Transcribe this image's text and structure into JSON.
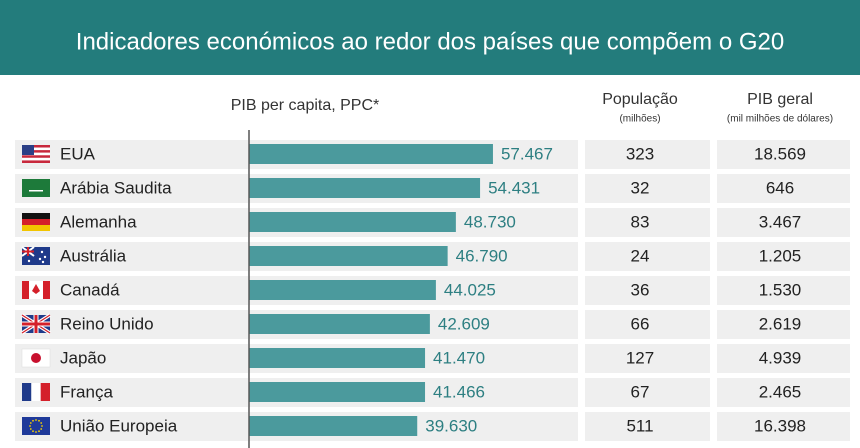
{
  "chart_data": {
    "type": "bar",
    "orientation": "horizontal",
    "title": "Indicadores económicos ao redor dos países que compõem o G20",
    "categories": [
      "EUA",
      "Arábia Saudita",
      "Alemanha",
      "Austrália",
      "Canadá",
      "Reino Unido",
      "Japão",
      "França",
      "União Europeia"
    ],
    "series": [
      {
        "name": "PIB per capita, PPC*",
        "color": "#4b9a9d",
        "values": [
          57467,
          54431,
          48730,
          46790,
          44025,
          42609,
          41470,
          41466,
          39630
        ],
        "value_labels": [
          "57.467",
          "54.431",
          "48.730",
          "46.790",
          "44.025",
          "42.609",
          "41.470",
          "41.466",
          "39.630"
        ]
      }
    ],
    "xlim": [
      0,
      77500
    ]
  },
  "table": {
    "columns": [
      {
        "title": "População",
        "subtitle": "(milhões)",
        "values": [
          323,
          32,
          83,
          24,
          36,
          66,
          127,
          67,
          511
        ]
      },
      {
        "title": "PIB geral",
        "subtitle": "(mil milhões de dólares)",
        "values": [
          "18.569",
          "646",
          "3.467",
          "1.205",
          "1.530",
          "2.619",
          "4.939",
          "2.465",
          "16.398"
        ]
      }
    ]
  }
}
